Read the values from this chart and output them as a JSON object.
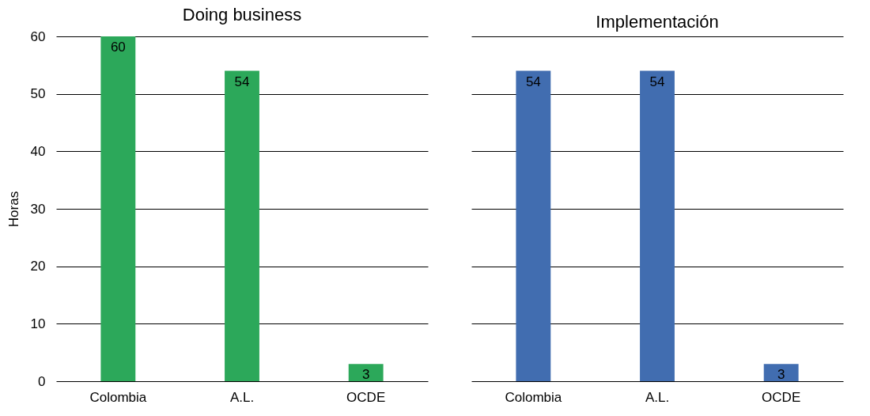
{
  "chart_data": [
    {
      "type": "bar",
      "title": "Doing business",
      "ylabel": "Horas",
      "categories": [
        "Colombia",
        "A.L.",
        "OCDE"
      ],
      "values": [
        60,
        54,
        3
      ],
      "color": "#2ca85a",
      "ylim": [
        0,
        60
      ],
      "yticks": [
        0,
        10,
        20,
        30,
        40,
        50,
        60
      ],
      "grid": "y",
      "data_labels": true
    },
    {
      "type": "bar",
      "title": "Implementación",
      "categories": [
        "Colombia",
        "A.L.",
        "OCDE"
      ],
      "values": [
        54,
        54,
        3
      ],
      "color": "#416db0",
      "ylim": [
        0,
        60
      ],
      "yticks": [
        0,
        10,
        20,
        30,
        40,
        50,
        60
      ],
      "grid": "y",
      "data_labels": true,
      "tick_labels": "x"
    }
  ]
}
